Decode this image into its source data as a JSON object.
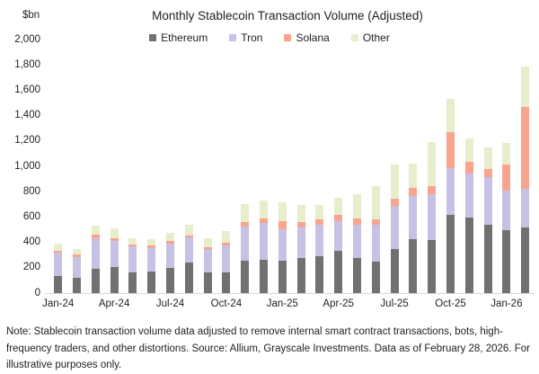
{
  "header": {
    "unit_label": "$bn",
    "title": "Monthly Stablecoin Transaction Volume (Adjusted)"
  },
  "chart_data": {
    "type": "bar",
    "stacked": true,
    "title": "Monthly Stablecoin Transaction Volume (Adjusted)",
    "xlabel": "",
    "ylabel": "$bn",
    "ylim": [
      0,
      2000
    ],
    "grid": false,
    "legend_position": "top",
    "categories": [
      "Jan-24",
      "Feb-24",
      "Mar-24",
      "Apr-24",
      "May-24",
      "Jun-24",
      "Jul-24",
      "Aug-24",
      "Sep-24",
      "Oct-24",
      "Nov-24",
      "Dec-24",
      "Jan-25",
      "Feb-25",
      "Mar-25",
      "Apr-25",
      "May-25",
      "Jun-25",
      "Jul-25",
      "Aug-25",
      "Sep-25",
      "Oct-25",
      "Nov-25",
      "Dec-25",
      "Jan-26",
      "Feb-26"
    ],
    "series": [
      {
        "name": "Ethereum",
        "color": "#717171",
        "values": [
          137,
          121,
          189,
          208,
          161,
          172,
          196,
          243,
          161,
          165,
          255,
          262,
          255,
          279,
          291,
          335,
          279,
          250,
          350,
          424,
          420,
          620,
          598,
          539,
          496,
          520
        ]
      },
      {
        "name": "Tron",
        "color": "#c7c1e5",
        "values": [
          180,
          165,
          244,
          206,
          205,
          185,
          194,
          197,
          184,
          208,
          267,
          289,
          248,
          236,
          248,
          235,
          262,
          290,
          336,
          340,
          360,
          365,
          343,
          374,
          315,
          300
        ]
      },
      {
        "name": "Solana",
        "color": "#f8a48e",
        "values": [
          16,
          17,
          28,
          19,
          15,
          16,
          19,
          16,
          17,
          24,
          40,
          35,
          65,
          43,
          40,
          50,
          50,
          40,
          61,
          63,
          66,
          285,
          94,
          63,
          205,
          650
        ]
      },
      {
        "name": "Other",
        "color": "#e8edcc",
        "values": [
          55,
          47,
          73,
          78,
          52,
          52,
          64,
          83,
          71,
          94,
          138,
          147,
          146,
          135,
          114,
          133,
          189,
          266,
          269,
          193,
          343,
          260,
          187,
          170,
          168,
          320
        ]
      }
    ],
    "y_ticks": [
      0,
      200,
      400,
      600,
      800,
      1000,
      1200,
      1400,
      1600,
      1800,
      2000
    ],
    "y_tick_labels": [
      "0",
      "200",
      "400",
      "600",
      "800",
      "1,000",
      "1,200",
      "1,400",
      "1,600",
      "1,800",
      "2,000"
    ],
    "x_tick_labels": [
      "Jan-24",
      "Apr-24",
      "Jul-24",
      "Oct-24",
      "Jan-25",
      "Apr-25",
      "Jul-25",
      "Oct-25",
      "Jan-26"
    ],
    "x_tick_every": 3
  },
  "footnote": "Note: Stablecoin transaction volume data adjusted to remove internal smart contract transactions, bots, high-frequency traders, and other distortions. Source: Allium, Grayscale Investments. Data as of February 28, 2026. For illustrative purposes only."
}
